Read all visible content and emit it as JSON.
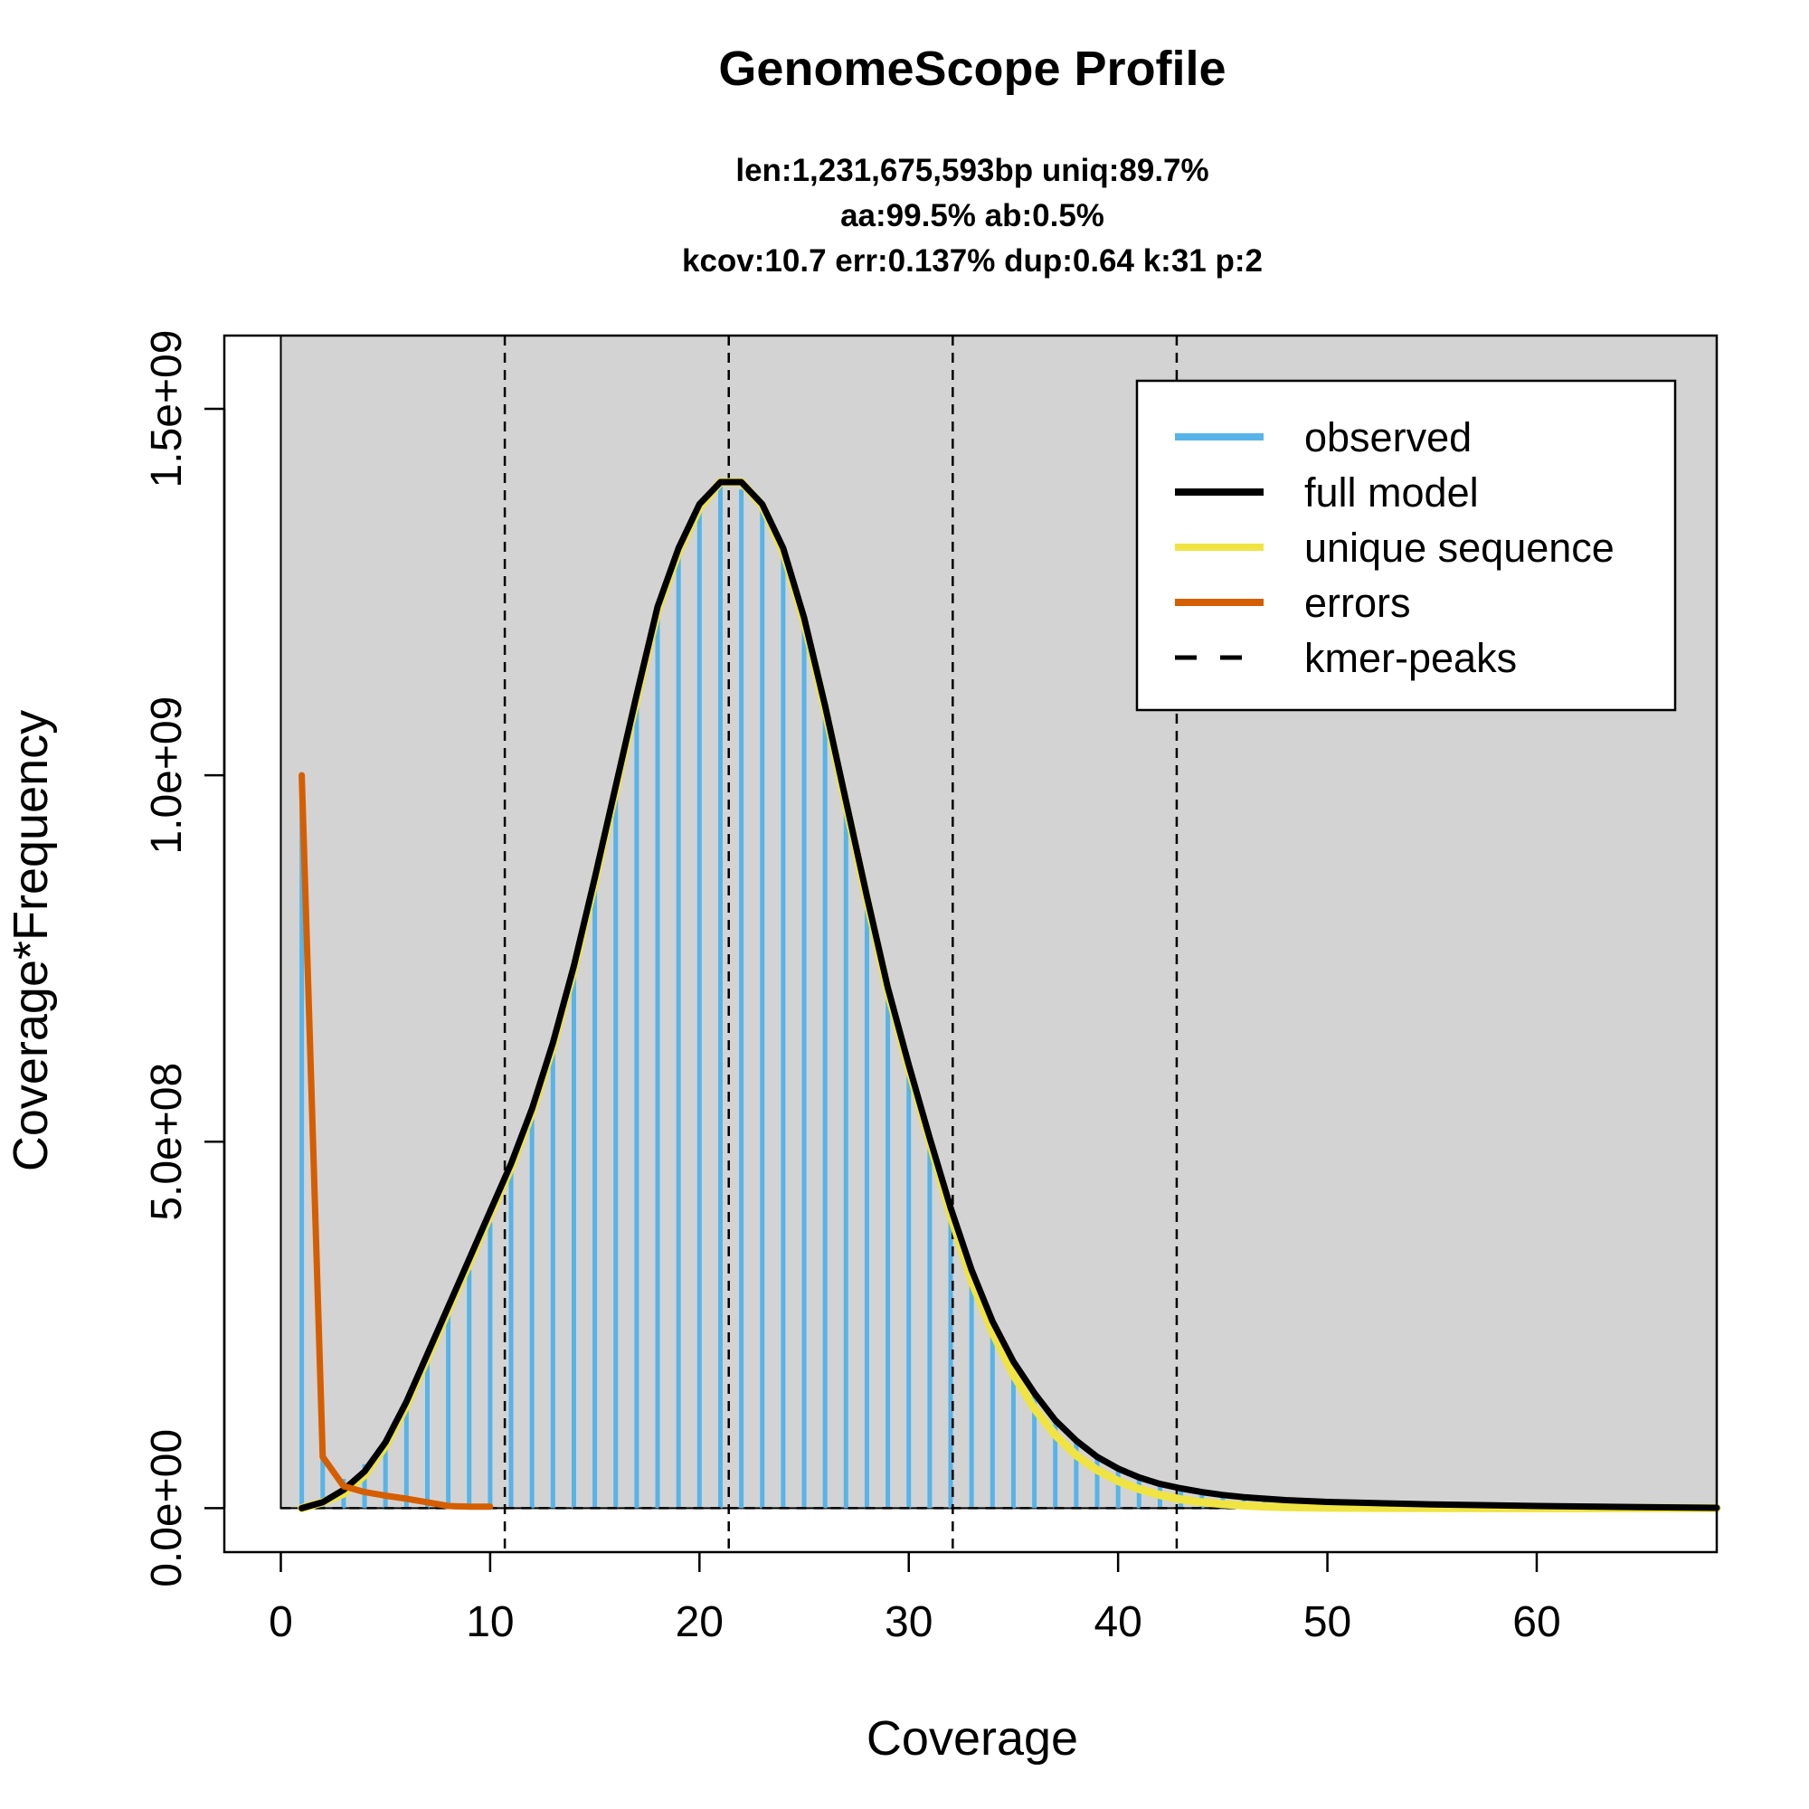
{
  "chart_data": {
    "type": "bar",
    "title": "GenomeScope Profile",
    "subtitle_lines": [
      "len:1,231,675,593bp uniq:89.7%",
      "aa:99.5% ab:0.5%",
      "kcov:10.7 err:0.137%  dup:0.64  k:31 p:2"
    ],
    "xlabel": "Coverage",
    "ylabel": "Coverage*Frequency",
    "xlim": [
      -2.7,
      68.6
    ],
    "ylim": [
      -60000000.0,
      1600000000.0
    ],
    "x_ticks": [
      0,
      10,
      20,
      30,
      40,
      50,
      60
    ],
    "x_tick_labels": [
      "0",
      "10",
      "20",
      "30",
      "40",
      "50",
      "60"
    ],
    "y_ticks": [
      0,
      500000000,
      1000000000,
      1500000000
    ],
    "y_tick_labels": [
      "0.0e+00",
      "5.0e+08",
      "1.0e+09",
      "1.5e+09"
    ],
    "background_panel": {
      "x_from": 0,
      "x_to": 68.6,
      "y_from": 0,
      "y_to": 1600000000.0,
      "color": "#d3d3d3"
    },
    "kmer_peaks": [
      10.7,
      21.4,
      32.1,
      42.8
    ],
    "colors": {
      "observed": "#56b4e9",
      "full_model": "#000000",
      "unique_sequence": "#f0e442",
      "errors": "#d55e00",
      "kmer_peaks": "#000000"
    },
    "legend": {
      "position": "top-right",
      "entries": [
        {
          "label": "observed",
          "key": "observed",
          "style": "solid"
        },
        {
          "label": "full model",
          "key": "full_model",
          "style": "solid"
        },
        {
          "label": "unique sequence",
          "key": "unique_sequence",
          "style": "solid"
        },
        {
          "label": "errors",
          "key": "errors",
          "style": "solid"
        },
        {
          "label": "kmer-peaks",
          "key": "kmer_peaks",
          "style": "dashed"
        }
      ]
    },
    "series": [
      {
        "name": "observed",
        "kind": "bars",
        "x": [
          1,
          2,
          3,
          4,
          5,
          6,
          7,
          8,
          9,
          10,
          11,
          12,
          13,
          14,
          15,
          16,
          17,
          18,
          19,
          20,
          21,
          22,
          23,
          24,
          25,
          26,
          27,
          28,
          29,
          30,
          31,
          32,
          33,
          34,
          35,
          36,
          37,
          38,
          39,
          40,
          41,
          42,
          43,
          44,
          45,
          46,
          47,
          48,
          49,
          50,
          51,
          52,
          53,
          54,
          55,
          56,
          57,
          58,
          59,
          60,
          61,
          62,
          63,
          64,
          65,
          66,
          67,
          68
        ],
        "values": [
          1000000000,
          70000000,
          40000000,
          60000000,
          85000000,
          140000000,
          205000000,
          265000000,
          325000000,
          390000000,
          460000000,
          535000000,
          625000000,
          730000000,
          850000000,
          975000000,
          1100000000,
          1220000000,
          1300000000,
          1360000000,
          1395000000,
          1390000000,
          1360000000,
          1300000000,
          1210000000,
          1090000000,
          960000000,
          830000000,
          710000000,
          600000000,
          500000000,
          400000000,
          320000000,
          255000000,
          200000000,
          155000000,
          118000000,
          90000000,
          70000000,
          54000000,
          42000000,
          34000000,
          28000000,
          23000000,
          19000000,
          16000000,
          14000000,
          12000000,
          11000000,
          10000000,
          9000000,
          8500000,
          8000000,
          7600000,
          7200000,
          6900000,
          6600000,
          6300000,
          6000000,
          5800000,
          5600000,
          5400000,
          5200000,
          5000000,
          4800000,
          4600000,
          4400000,
          4200000
        ]
      },
      {
        "name": "unique sequence",
        "kind": "line",
        "x": [
          1,
          2,
          3,
          4,
          5,
          6,
          7,
          8,
          9,
          10,
          11,
          12,
          13,
          14,
          15,
          16,
          17,
          18,
          19,
          20,
          21,
          22,
          23,
          24,
          25,
          26,
          27,
          28,
          29,
          30,
          31,
          32,
          33,
          34,
          35,
          36,
          37,
          38,
          39,
          40,
          41,
          42,
          43,
          44,
          45,
          46,
          47,
          48,
          50,
          55,
          60,
          65,
          68.6
        ],
        "values": [
          0,
          8000000,
          20000000,
          45000000,
          85000000,
          140000000,
          205000000,
          270000000,
          335000000,
          400000000,
          465000000,
          540000000,
          630000000,
          735000000,
          855000000,
          980000000,
          1105000000,
          1225000000,
          1305000000,
          1365000000,
          1400000000,
          1400000000,
          1368000000,
          1305000000,
          1210000000,
          1090000000,
          960000000,
          830000000,
          705000000,
          600000000,
          500000000,
          400000000,
          310000000,
          240000000,
          182000000,
          136000000,
          100000000,
          72000000,
          52000000,
          37000000,
          26000000,
          18000000,
          12000000,
          8000000,
          5500000,
          3500000,
          2200000,
          1400000,
          600000,
          100000,
          20000,
          5000,
          1000
        ]
      },
      {
        "name": "full model",
        "kind": "line",
        "x": [
          1,
          2,
          3,
          4,
          5,
          6,
          7,
          8,
          9,
          10,
          11,
          12,
          13,
          14,
          15,
          16,
          17,
          18,
          19,
          20,
          21,
          22,
          23,
          24,
          25,
          26,
          27,
          28,
          29,
          30,
          31,
          32,
          33,
          34,
          35,
          36,
          37,
          38,
          39,
          40,
          41,
          42,
          43,
          44,
          45,
          46,
          47,
          48,
          50,
          55,
          60,
          65,
          68.6
        ],
        "values": [
          0,
          8000000,
          25000000,
          50000000,
          90000000,
          145000000,
          210000000,
          275000000,
          340000000,
          405000000,
          470000000,
          545000000,
          635000000,
          740000000,
          860000000,
          985000000,
          1110000000,
          1230000000,
          1310000000,
          1370000000,
          1400000000,
          1400000000,
          1370000000,
          1310000000,
          1215000000,
          1095000000,
          965000000,
          835000000,
          710000000,
          605000000,
          505000000,
          410000000,
          325000000,
          255000000,
          200000000,
          157000000,
          120000000,
          92000000,
          70000000,
          54000000,
          42000000,
          33000000,
          27000000,
          22000000,
          18000000,
          15000000,
          13000000,
          11000000,
          8500000,
          5000000,
          3000000,
          1500000,
          500000
        ]
      },
      {
        "name": "errors",
        "kind": "line",
        "x": [
          1,
          2,
          3,
          4,
          5,
          6,
          7,
          8,
          9,
          10
        ],
        "values": [
          1000000000,
          70000000,
          30000000,
          22000000,
          17000000,
          13000000,
          8000000,
          3000000,
          2000000,
          2000000
        ]
      }
    ]
  }
}
